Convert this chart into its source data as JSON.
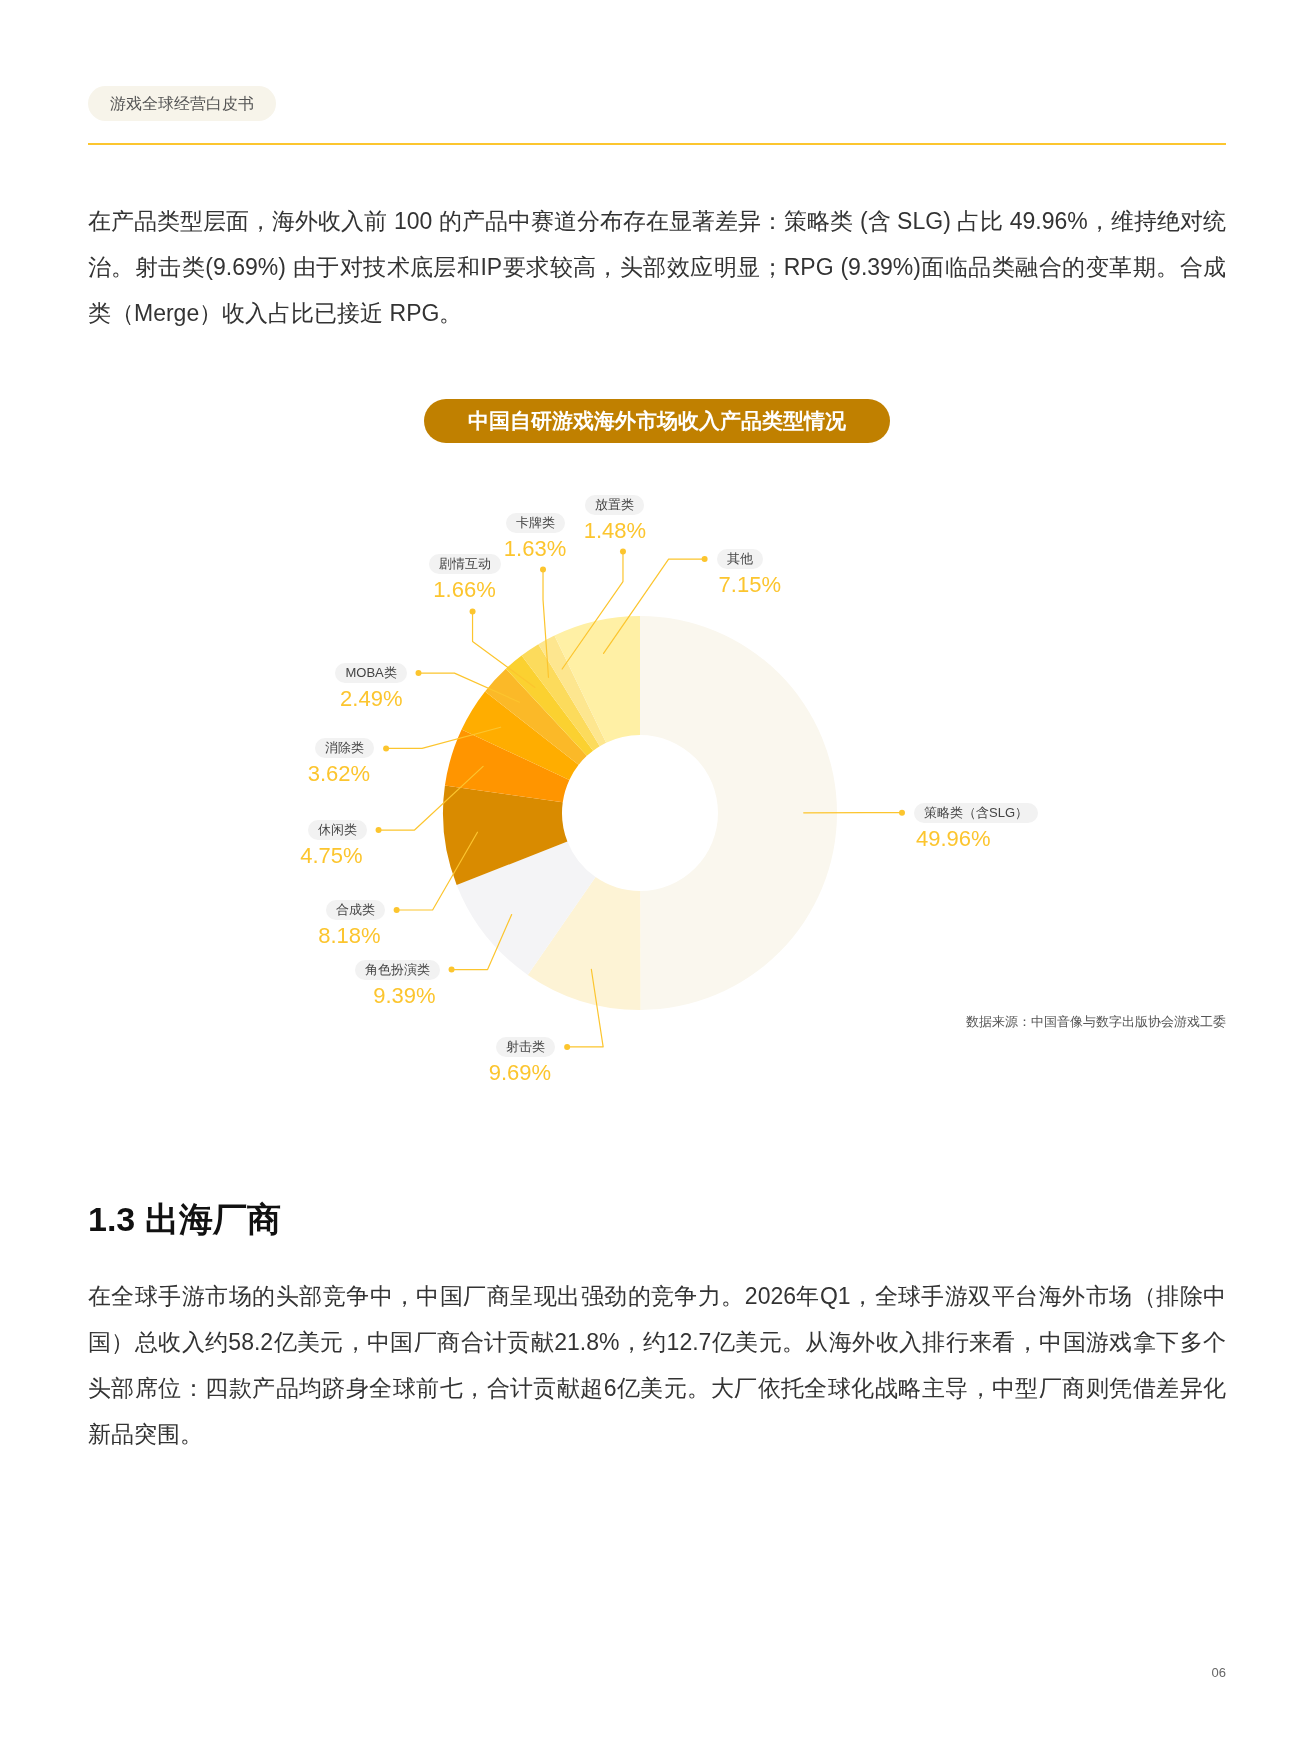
{
  "chart_data": {
    "type": "donut",
    "title": "中国自研游戏海外市场收入产品类型情况",
    "categories": [
      "策略类（含SLG）",
      "射击类",
      "角色扮演类",
      "合成类",
      "休闲类",
      "消除类",
      "MOBA类",
      "剧情互动",
      "卡牌类",
      "放置类",
      "其他"
    ],
    "values": [
      49.96,
      9.69,
      9.39,
      8.18,
      4.75,
      3.62,
      2.49,
      1.66,
      1.63,
      1.48,
      7.15
    ],
    "colors": [
      "#faf7ee",
      "#fdf3d5",
      "#f4f4f6",
      "#d98b00",
      "#ff9500",
      "#ffad00",
      "#fbb928",
      "#fbd130",
      "#fcdb5c",
      "#fde68f",
      "#fff0a5"
    ],
    "value_labels": [
      "49.96%",
      "9.69%",
      "9.39%",
      "8.18%",
      "4.75%",
      "3.62%",
      "2.49%",
      "1.66%",
      "1.63%",
      "1.48%",
      "7.15%"
    ],
    "annotations": [
      "游戏全球经营白皮书",
      "在产品类型层面，海外收入前 100 的产品中赛道分布存在显著差异：策略类 (含 SLG) 占比 49.96%，维持绝对统治。射击类(9.69%) 由于对技术底层和IP要求较高，头部效应明显；RPG (9.39%)面临品类融合的变革期。合成类（Merge）收入占比已接近 RPG。",
      "1.3 出海厂商",
      "在全球手游市场的头部竞争中，中国厂商呈现出强劲的竞争力。2026年Q1，全球手游双平台海外市场（排除中国）总收入约58.2亿美元，中国厂商合计贡献21.8%，约12.7亿美元。从海外收入排行来看，中国游戏拿下多个头部席位：四款产品均跻身全球前七，合计贡献超6亿美元。大厂依托全球化战略主导，中型厂商则凭借差异化新品突围。",
      "数据来源：中国音像与数字出版协会游戏工委",
      "06"
    ]
  }
}
